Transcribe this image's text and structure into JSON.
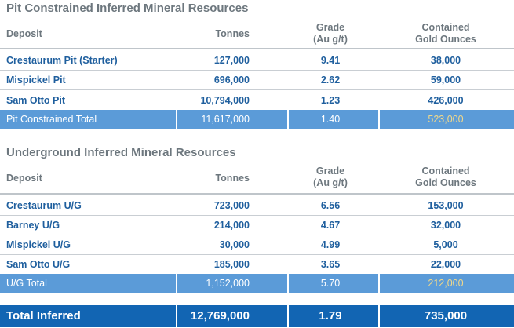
{
  "pit": {
    "title": "Pit Constrained Inferred Mineral Resources",
    "headers": {
      "deposit": "Deposit",
      "tonnes": "Tonnes",
      "grade_line1": "Grade",
      "grade_line2": "(Au g/t)",
      "ounces_line1": "Contained",
      "ounces_line2": "Gold Ounces"
    },
    "rows": [
      {
        "deposit": "Crestaurum Pit (Starter)",
        "tonnes": "127,000",
        "grade": "9.41",
        "ounces": "38,000"
      },
      {
        "deposit": "Mispickel Pit",
        "tonnes": "696,000",
        "grade": "2.62",
        "ounces": "59,000"
      },
      {
        "deposit": "Sam Otto Pit",
        "tonnes": "10,794,000",
        "grade": "1.23",
        "ounces": "426,000"
      }
    ],
    "total": {
      "deposit": "Pit  Constrained Total",
      "tonnes": "11,617,000",
      "grade": "1.40",
      "ounces": "523,000"
    }
  },
  "underground": {
    "title": "Underground Inferred Mineral Resources",
    "headers": {
      "deposit": "Deposit",
      "tonnes": "Tonnes",
      "grade_line1": "Grade",
      "grade_line2": "(Au g/t)",
      "ounces_line1": "Contained",
      "ounces_line2": "Gold Ounces"
    },
    "rows": [
      {
        "deposit": "Crestaurum U/G",
        "tonnes": "723,000",
        "grade": "6.56",
        "ounces": "153,000"
      },
      {
        "deposit": "Barney U/G",
        "tonnes": "214,000",
        "grade": "4.67",
        "ounces": "32,000"
      },
      {
        "deposit": "Mispickel U/G",
        "tonnes": "30,000",
        "grade": "4.99",
        "ounces": "5,000"
      },
      {
        "deposit": "Sam Otto U/G",
        "tonnes": "185,000",
        "grade": "3.65",
        "ounces": "22,000"
      }
    ],
    "total": {
      "deposit": "U/G Total",
      "tonnes": "1,152,000",
      "grade": "5.70",
      "ounces": "212,000"
    }
  },
  "grand_total": {
    "deposit": "Total Inferred",
    "tonnes": "12,769,000",
    "grade": "1.79",
    "ounces": "735,000"
  },
  "colors": {
    "heading_gray": "#6d777e",
    "row_text_blue": "#1f5f9e",
    "subtotal_bar": "#5b9bd8",
    "subtotal_gold_text": "#f1d88a",
    "grand_total_bar": "#1265b3"
  }
}
